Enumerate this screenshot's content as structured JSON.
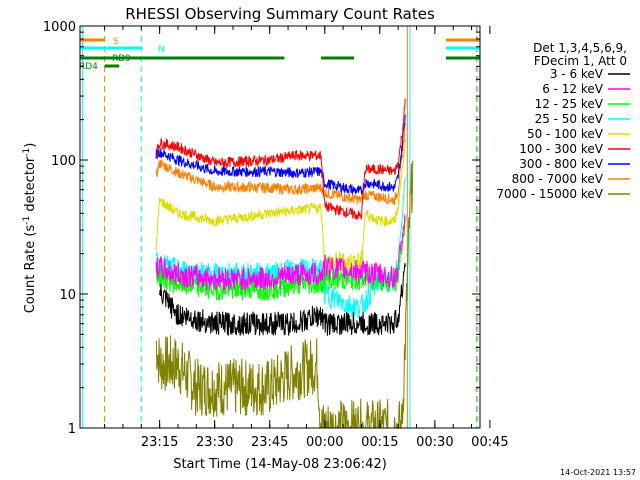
{
  "chart_data": {
    "type": "line",
    "title": "RHESSI Observing Summary Count Rates",
    "xlabel": "Start Time (14-May-08 23:06:42)",
    "ylabel_main": "Count Rate (s",
    "ylabel_sup1": "-1",
    "ylabel_mid": " detector",
    "ylabel_sup2": "-1",
    "ylabel_end": ")",
    "yscale": "log",
    "ylim": [
      1,
      1000
    ],
    "xlim_minutes": [
      -6.7,
      102.3
    ],
    "yticks": [
      {
        "value": 1,
        "label": "1"
      },
      {
        "value": 10,
        "label": "10"
      },
      {
        "value": 100,
        "label": "100"
      },
      {
        "value": 1000,
        "label": "1000"
      }
    ],
    "xticks": [
      {
        "minute": 15,
        "label": "23:15"
      },
      {
        "minute": 30,
        "label": "23:30"
      },
      {
        "minute": 45,
        "label": "23:45"
      },
      {
        "minute": 60,
        "label": "00:00"
      },
      {
        "minute": 75,
        "label": "00:15"
      },
      {
        "minute": 90,
        "label": "00:30"
      },
      {
        "minute": 105,
        "label": "00:45"
      }
    ],
    "legend_header": [
      "Det 1,3,4,5,6,9,",
      "FDecim 1, Att 0"
    ],
    "legend_position": "right",
    "series": [
      {
        "name": "3 - 6 keV",
        "color": "#000000",
        "points": [
          [
            15,
            10
          ],
          [
            20,
            7
          ],
          [
            30,
            6
          ],
          [
            45,
            6
          ],
          [
            52,
            6
          ],
          [
            59,
            7
          ],
          [
            60,
            6
          ],
          [
            75,
            6
          ],
          [
            79,
            6
          ],
          [
            80,
            7
          ],
          [
            81,
            10
          ],
          [
            82,
            20
          ]
        ]
      },
      {
        "name": "6 - 12 keV",
        "color": "#ff00ff",
        "points": [
          [
            14,
            16
          ],
          [
            20,
            14
          ],
          [
            30,
            13
          ],
          [
            45,
            13
          ],
          [
            52,
            14
          ],
          [
            59,
            14
          ],
          [
            60,
            16
          ],
          [
            75,
            14
          ],
          [
            79,
            13
          ],
          [
            80,
            16
          ],
          [
            81,
            25
          ],
          [
            82,
            40
          ]
        ]
      },
      {
        "name": "12 - 25 keV",
        "color": "#00ff00",
        "points": [
          [
            14,
            14
          ],
          [
            20,
            12
          ],
          [
            30,
            11
          ],
          [
            45,
            11
          ],
          [
            52,
            12
          ],
          [
            59,
            12
          ],
          [
            60,
            13
          ],
          [
            75,
            13
          ],
          [
            79,
            12
          ],
          [
            80,
            14
          ],
          [
            81,
            22
          ],
          [
            82,
            35
          ]
        ]
      },
      {
        "name": "25 - 50 keV",
        "color": "#00ffff",
        "points": [
          [
            14,
            17
          ],
          [
            20,
            15
          ],
          [
            30,
            14
          ],
          [
            45,
            14
          ],
          [
            52,
            15
          ],
          [
            59,
            15
          ],
          [
            60,
            10
          ],
          [
            68,
            8
          ],
          [
            70,
            8
          ],
          [
            75,
            13
          ],
          [
            79,
            12
          ],
          [
            80,
            18
          ],
          [
            81,
            35
          ],
          [
            82,
            80
          ]
        ]
      },
      {
        "name": "50 - 100 keV",
        "color": "#dddd00",
        "points": [
          [
            14,
            22
          ],
          [
            15,
            50
          ],
          [
            20,
            40
          ],
          [
            30,
            35
          ],
          [
            45,
            40
          ],
          [
            52,
            42
          ],
          [
            59,
            44
          ],
          [
            60,
            17
          ],
          [
            70,
            17
          ],
          [
            71,
            40
          ],
          [
            75,
            35
          ],
          [
            79,
            35
          ],
          [
            80,
            45
          ],
          [
            81,
            80
          ],
          [
            82,
            150
          ]
        ]
      },
      {
        "name": "100 - 300 keV",
        "color": "#ff0000",
        "points": [
          [
            14,
            110
          ],
          [
            15,
            135
          ],
          [
            20,
            125
          ],
          [
            30,
            95
          ],
          [
            45,
            100
          ],
          [
            52,
            108
          ],
          [
            59,
            108
          ],
          [
            60,
            45
          ],
          [
            70,
            38
          ],
          [
            71,
            85
          ],
          [
            75,
            85
          ],
          [
            79,
            82
          ],
          [
            80,
            95
          ],
          [
            81,
            150
          ],
          [
            82,
            280
          ]
        ]
      },
      {
        "name": "300 - 800 keV",
        "color": "#0000ff",
        "points": [
          [
            14,
            110
          ],
          [
            15,
            115
          ],
          [
            20,
            100
          ],
          [
            30,
            82
          ],
          [
            45,
            82
          ],
          [
            52,
            80
          ],
          [
            59,
            82
          ],
          [
            60,
            67
          ],
          [
            70,
            58
          ],
          [
            71,
            68
          ],
          [
            75,
            65
          ],
          [
            79,
            62
          ],
          [
            80,
            75
          ],
          [
            81,
            120
          ],
          [
            82,
            230
          ]
        ]
      },
      {
        "name": "800 - 7000 keV",
        "color": "#ff8000",
        "points": [
          [
            14,
            75
          ],
          [
            15,
            95
          ],
          [
            20,
            80
          ],
          [
            30,
            63
          ],
          [
            45,
            62
          ],
          [
            52,
            60
          ],
          [
            59,
            62
          ],
          [
            60,
            57
          ],
          [
            70,
            50
          ],
          [
            71,
            55
          ],
          [
            75,
            53
          ],
          [
            79,
            50
          ],
          [
            80,
            60
          ],
          [
            81,
            100
          ],
          [
            82,
            190
          ]
        ]
      },
      {
        "name": "7000 - 15000 keV",
        "color": "#808000",
        "points": [
          [
            14,
            4.4
          ],
          [
            15,
            3
          ],
          [
            20,
            3
          ],
          [
            25,
            2
          ],
          [
            45,
            2
          ],
          [
            50,
            2.5
          ],
          [
            58,
            3
          ],
          [
            59,
            1
          ],
          [
            81,
            1
          ],
          [
            82,
            5
          ],
          [
            83,
            30
          ],
          [
            84,
            90
          ]
        ]
      }
    ],
    "state_bars": [
      {
        "label": "S",
        "color": "#ff8000",
        "segments": [
          [
            -6.7,
            0
          ],
          [
            93,
            102.3
          ]
        ]
      },
      {
        "label": "N",
        "color": "#00ffff",
        "segments": [
          [
            -6.7,
            10
          ],
          [
            93,
            102.3
          ]
        ]
      },
      {
        "label": "RD9",
        "color": "#008000",
        "segments": [
          [
            -6.7,
            49
          ],
          [
            59,
            68
          ],
          [
            93,
            102.3
          ]
        ]
      },
      {
        "label": "RD4",
        "color": "#008000",
        "segments": [
          [
            0,
            4
          ]
        ]
      }
    ],
    "vertical_markers": [
      {
        "minute": -6.0,
        "color": "#00ffff",
        "style": "solid"
      },
      {
        "minute": 0.0,
        "color": "#ff8000",
        "style": "dashed"
      },
      {
        "minute": 10.0,
        "color": "#00ffff",
        "style": "dashed"
      },
      {
        "minute": 82.5,
        "color": "#ff8000",
        "style": "solid"
      },
      {
        "minute": 83.2,
        "color": "#00ffff",
        "style": "solid"
      },
      {
        "minute": 101.3,
        "color": "#ff8000",
        "style": "dashed"
      },
      {
        "minute": 101.7,
        "color": "#00ffff",
        "style": "dashed"
      }
    ],
    "footer": "14-Oct-2021 13:57"
  }
}
